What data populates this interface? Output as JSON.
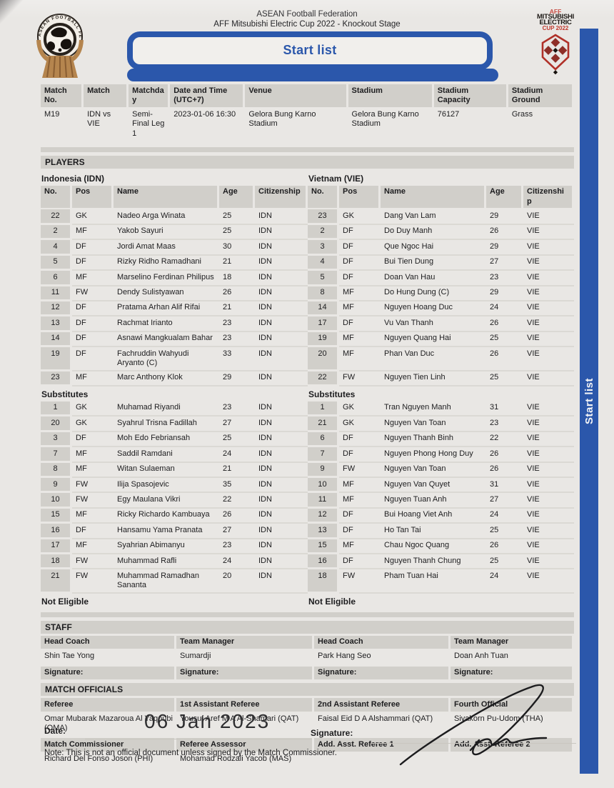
{
  "header": {
    "line1": "ASEAN Football Federation",
    "line2": "AFF Mitsubishi Electric Cup 2022 - Knockout Stage",
    "banner_title": "Start list",
    "side_tab_label": "Start list"
  },
  "logo_left": {
    "ring_text": "ASEAN FOOTBALL FEDERATION"
  },
  "logo_right": {
    "line1": "AFF",
    "line2": "MITSUBISHI",
    "line3": "ELECTRIC",
    "line4": "CUP 2022"
  },
  "colors": {
    "accent_blue": "#2b57ab",
    "bar_gray": "#d1cfca",
    "paper": "#e9e7e4",
    "logo_red": "#c0392e",
    "logo_brown": "#b5854e"
  },
  "match_info": {
    "headers": [
      "Match No.",
      "Match",
      "Matchday",
      "Date and Time (UTC+7)",
      "Venue",
      "Stadium",
      "Stadium Capacity",
      "Stadium Ground"
    ],
    "values": [
      "M19",
      "IDN vs VIE",
      "Semi-Final Leg 1",
      "2023-01-06 16:30",
      "Gelora Bung Karno Stadium",
      "Gelora Bung Karno Stadium",
      "76127",
      "Grass"
    ]
  },
  "players": {
    "section_label": "PLAYERS",
    "left_team_label": "Indonesia (IDN)",
    "right_team_label": "Vietnam (VIE)",
    "columns": [
      "No.",
      "Pos",
      "Name",
      "Age",
      "Citizenship"
    ],
    "substitutes_label": "Substitutes",
    "not_eligible_label": "Not Eligible",
    "starters": [
      {
        "l": [
          "22",
          "GK",
          "Nadeo Arga Winata",
          "25",
          "IDN"
        ],
        "r": [
          "23",
          "GK",
          "Dang Van Lam",
          "29",
          "VIE"
        ]
      },
      {
        "l": [
          "2",
          "MF",
          "Yakob Sayuri",
          "25",
          "IDN"
        ],
        "r": [
          "2",
          "DF",
          "Do Duy Manh",
          "26",
          "VIE"
        ]
      },
      {
        "l": [
          "4",
          "DF",
          "Jordi Amat Maas",
          "30",
          "IDN"
        ],
        "r": [
          "3",
          "DF",
          "Que Ngoc Hai",
          "29",
          "VIE"
        ]
      },
      {
        "l": [
          "5",
          "DF",
          "Rizky Ridho Ramadhani",
          "21",
          "IDN"
        ],
        "r": [
          "4",
          "DF",
          "Bui Tien Dung",
          "27",
          "VIE"
        ]
      },
      {
        "l": [
          "6",
          "MF",
          "Marselino Ferdinan Philipus",
          "18",
          "IDN"
        ],
        "r": [
          "5",
          "DF",
          "Doan Van Hau",
          "23",
          "VIE"
        ]
      },
      {
        "l": [
          "11",
          "FW",
          "Dendy Sulistyawan",
          "26",
          "IDN"
        ],
        "r": [
          "8",
          "MF",
          "Do Hung Dung (C)",
          "29",
          "VIE"
        ]
      },
      {
        "l": [
          "12",
          "DF",
          "Pratama Arhan Alif Rifai",
          "21",
          "IDN"
        ],
        "r": [
          "14",
          "MF",
          "Nguyen Hoang Duc",
          "24",
          "VIE"
        ]
      },
      {
        "l": [
          "13",
          "DF",
          "Rachmat Irianto",
          "23",
          "IDN"
        ],
        "r": [
          "17",
          "DF",
          "Vu Van Thanh",
          "26",
          "VIE"
        ]
      },
      {
        "l": [
          "14",
          "DF",
          "Asnawi Mangkualam Bahar",
          "23",
          "IDN"
        ],
        "r": [
          "19",
          "MF",
          "Nguyen Quang Hai",
          "25",
          "VIE"
        ]
      },
      {
        "l": [
          "19",
          "DF",
          "Fachruddin Wahyudi Aryanto (C)",
          "33",
          "IDN"
        ],
        "r": [
          "20",
          "MF",
          "Phan Van Duc",
          "26",
          "VIE"
        ]
      },
      {
        "l": [
          "23",
          "MF",
          "Marc Anthony Klok",
          "29",
          "IDN"
        ],
        "r": [
          "22",
          "FW",
          "Nguyen Tien Linh",
          "25",
          "VIE"
        ]
      }
    ],
    "substitutes": [
      {
        "l": [
          "1",
          "GK",
          "Muhamad Riyandi",
          "23",
          "IDN"
        ],
        "r": [
          "1",
          "GK",
          "Tran Nguyen Manh",
          "31",
          "VIE"
        ]
      },
      {
        "l": [
          "20",
          "GK",
          "Syahrul Trisna Fadillah",
          "27",
          "IDN"
        ],
        "r": [
          "21",
          "GK",
          "Nguyen Van Toan",
          "23",
          "VIE"
        ]
      },
      {
        "l": [
          "3",
          "DF",
          "Moh Edo Febriansah",
          "25",
          "IDN"
        ],
        "r": [
          "6",
          "DF",
          "Nguyen Thanh Binh",
          "22",
          "VIE"
        ]
      },
      {
        "l": [
          "7",
          "MF",
          "Saddil Ramdani",
          "24",
          "IDN"
        ],
        "r": [
          "7",
          "DF",
          "Nguyen Phong Hong Duy",
          "26",
          "VIE"
        ]
      },
      {
        "l": [
          "8",
          "MF",
          "Witan Sulaeman",
          "21",
          "IDN"
        ],
        "r": [
          "9",
          "FW",
          "Nguyen Van Toan",
          "26",
          "VIE"
        ]
      },
      {
        "l": [
          "9",
          "FW",
          "Ilija Spasojevic",
          "35",
          "IDN"
        ],
        "r": [
          "10",
          "MF",
          "Nguyen Van Quyet",
          "31",
          "VIE"
        ]
      },
      {
        "l": [
          "10",
          "FW",
          "Egy Maulana Vikri",
          "22",
          "IDN"
        ],
        "r": [
          "11",
          "MF",
          "Nguyen Tuan Anh",
          "27",
          "VIE"
        ]
      },
      {
        "l": [
          "15",
          "MF",
          "Ricky Richardo Kambuaya",
          "26",
          "IDN"
        ],
        "r": [
          "12",
          "DF",
          "Bui Hoang Viet Anh",
          "24",
          "VIE"
        ]
      },
      {
        "l": [
          "16",
          "DF",
          "Hansamu Yama Pranata",
          "27",
          "IDN"
        ],
        "r": [
          "13",
          "DF",
          "Ho Tan Tai",
          "25",
          "VIE"
        ]
      },
      {
        "l": [
          "17",
          "MF",
          "Syahrian Abimanyu",
          "23",
          "IDN"
        ],
        "r": [
          "15",
          "MF",
          "Chau Ngoc Quang",
          "26",
          "VIE"
        ]
      },
      {
        "l": [
          "18",
          "FW",
          "Muhammad Rafli",
          "24",
          "IDN"
        ],
        "r": [
          "16",
          "DF",
          "Nguyen Thanh Chung",
          "25",
          "VIE"
        ]
      },
      {
        "l": [
          "21",
          "FW",
          "Muhammad Ramadhan Sananta",
          "20",
          "IDN"
        ],
        "r": [
          "18",
          "FW",
          "Pham Tuan Hai",
          "24",
          "VIE"
        ]
      }
    ]
  },
  "staff": {
    "section_label": "STAFF",
    "headers": [
      "Head Coach",
      "Team Manager",
      "Head Coach",
      "Team Manager"
    ],
    "values": [
      "Shin Tae Yong",
      "Sumardji",
      "Park Hang Seo",
      "Doan Anh Tuan"
    ],
    "signature_label": "Signature:"
  },
  "officials": {
    "section_label": "MATCH OFFICIALS",
    "row1_headers": [
      "Referee",
      "1st Assistant Referee",
      "2nd Assistant Referee",
      "Fourth Official"
    ],
    "row1_values": [
      "Omar Mubarak Mazaroua Al Yaqoubi (OMA)",
      "Yousuf Aref M A Al-Shamari (QAT)",
      "Faisal Eid D A Alshammari (QAT)",
      "Sivakorn Pu-Udom (THA)"
    ],
    "row2_headers": [
      "Match Commissioner",
      "Referee Assessor",
      "Add. Asst. Referee 1",
      "Add. Asst. Referee 2"
    ],
    "row2_values": [
      "Richard Del Fonso Joson (PHI)",
      "Mohamad Rodzali Yacob (MAS)",
      "",
      ""
    ]
  },
  "footer": {
    "date_label": "Date:",
    "date_value": "06 Jan 2023",
    "signature_label": "Signature:",
    "note": "Note: This is not an official document unless signed by the Match Commissioner."
  }
}
